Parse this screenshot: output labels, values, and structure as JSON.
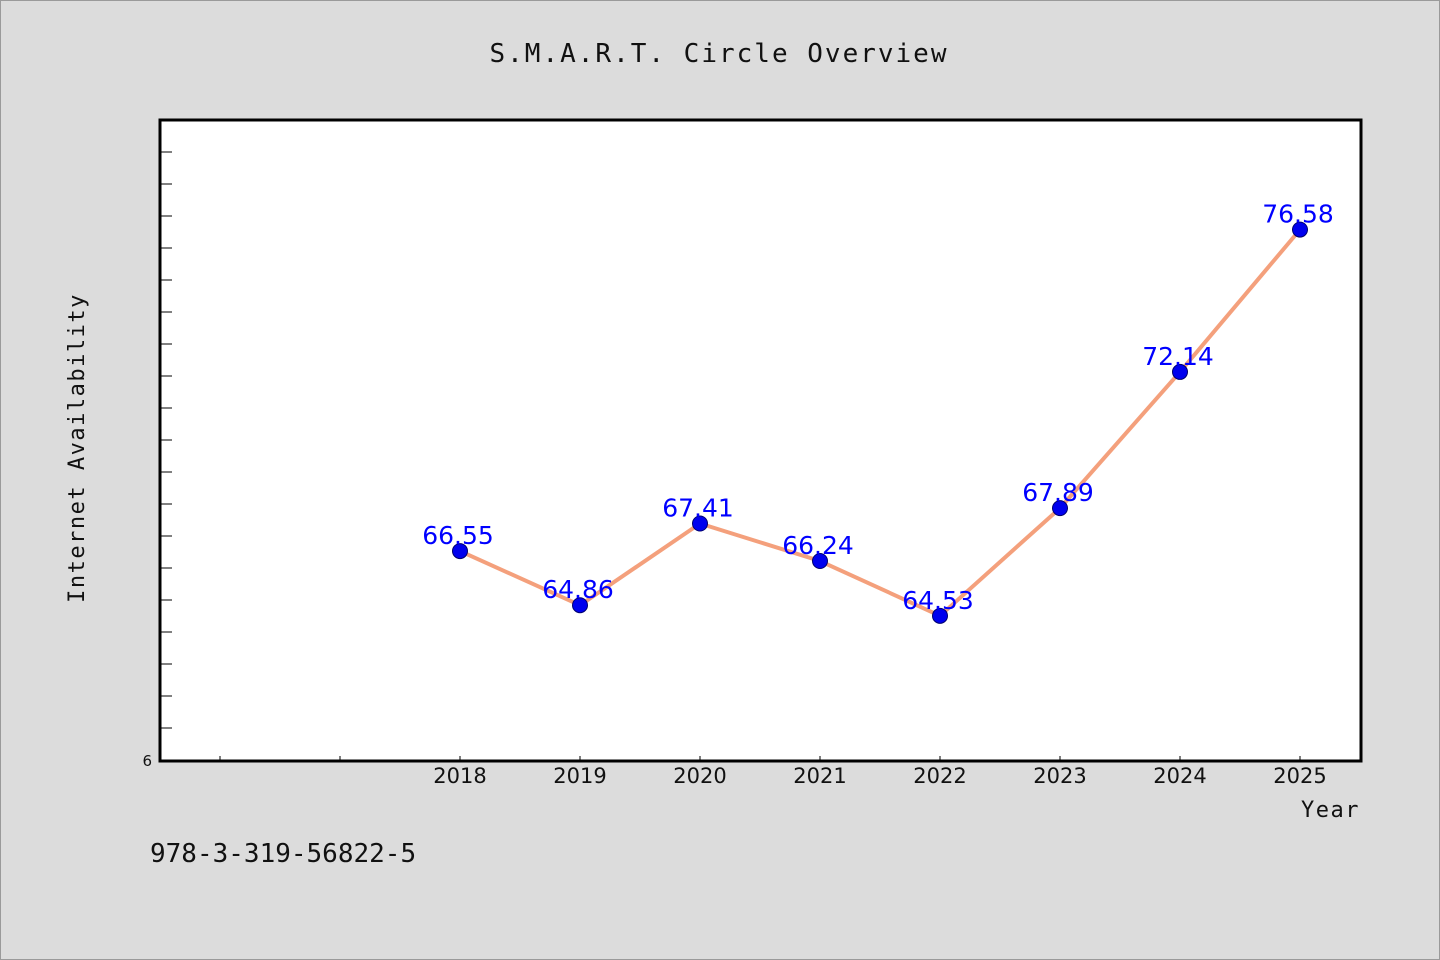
{
  "chart_data": {
    "type": "line",
    "title": "S.M.A.R.T. Circle Overview",
    "xlabel": "Year",
    "ylabel": "Internet Availability",
    "x": [
      "2018",
      "2019",
      "2020",
      "2021",
      "2022",
      "2023",
      "2024",
      "2025"
    ],
    "series": [
      {
        "values": [
          66.55,
          64.86,
          67.41,
          66.24,
          64.53,
          67.89,
          72.14,
          76.58
        ],
        "labels": [
          "66.55",
          "64.86",
          "67.41",
          "66.24",
          "64.53",
          "67.89",
          "72.14",
          "76.58"
        ],
        "line_color": "#f4a07c",
        "marker_color": "#0000ee"
      }
    ],
    "y_tick_labels": [
      "6"
    ],
    "ylim": [
      60,
      80
    ],
    "grid": false,
    "plot_background": "#ffffff",
    "figure_background": "#dcdcdc"
  },
  "footer": {
    "isbn": "978-3-319-56822-5"
  }
}
